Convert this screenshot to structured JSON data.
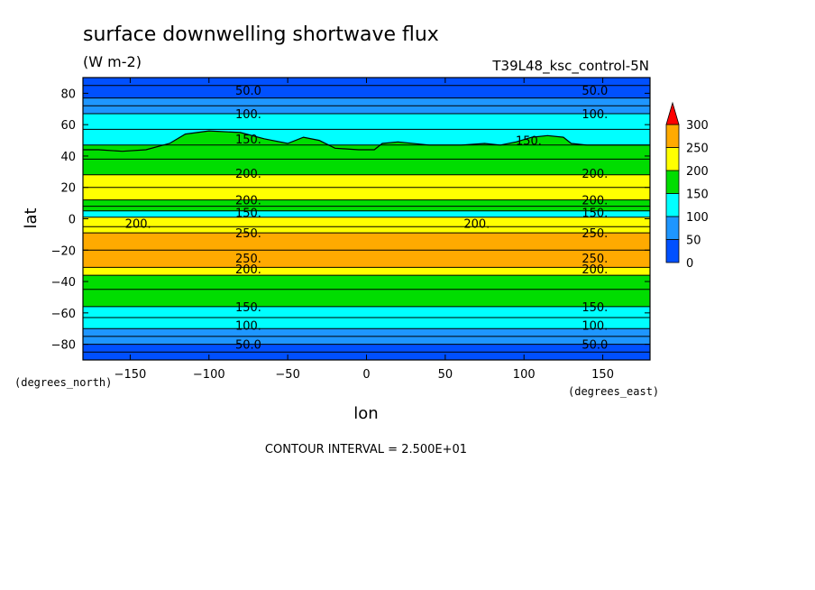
{
  "chart_data": {
    "type": "heatmap",
    "title": "surface downwelling shortwave flux",
    "units": "(W m-2)",
    "run_label": "T39L48_ksc_control-5N",
    "xlabel": "lon",
    "ylabel": "lat",
    "x_units_label": "(degrees_east)",
    "y_units_label": "(degrees_north)",
    "xlim": [
      -180,
      180
    ],
    "ylim": [
      -90,
      90
    ],
    "x_ticks": [
      -150,
      -100,
      -50,
      0,
      50,
      100,
      150
    ],
    "x_tick_labels": [
      "-150",
      "-100",
      "-50",
      "0",
      "50",
      "100",
      "150"
    ],
    "y_ticks": [
      80,
      60,
      40,
      20,
      0,
      -20,
      -40,
      -60,
      -80
    ],
    "y_tick_labels": [
      "80",
      "60",
      "40",
      "20",
      "0",
      "-20",
      "-40",
      "-60",
      "-80"
    ],
    "contour_interval_text": "CONTOUR INTERVAL = 2.500E+01",
    "colorbar": {
      "levels": [
        0,
        50,
        100,
        150,
        200,
        250,
        300
      ],
      "labels": [
        "0",
        "50",
        "100",
        "150",
        "200",
        "250",
        "300"
      ],
      "colors": [
        "#0050ff",
        "#1e96ff",
        "#00ffff",
        "#00dd00",
        "#ffff00",
        "#ffaa00"
      ],
      "overflow_color": "#ff0000"
    },
    "colors": {
      "dark_blue": "#0050ff",
      "mid_blue": "#1e96ff",
      "cyan": "#00ffff",
      "green": "#00dd00",
      "yellow": "#ffff00",
      "orange": "#ffaa00"
    },
    "bands": [
      {
        "lat_from": 90,
        "lat_to": 77,
        "class": "dark_blue"
      },
      {
        "lat_from": 77,
        "lat_to": 67,
        "class": "mid_blue"
      },
      {
        "lat_from": 67,
        "lat_to": 47,
        "class": "cyan"
      },
      {
        "lat_from": 47,
        "lat_to": 28,
        "class": "green"
      },
      {
        "lat_from": 28,
        "lat_to": 12,
        "class": "yellow"
      },
      {
        "lat_from": 12,
        "lat_to": 5,
        "class": "green"
      },
      {
        "lat_from": 5,
        "lat_to": 1,
        "class": "cyan"
      },
      {
        "lat_from": 1,
        "lat_to": -9,
        "class": "yellow"
      },
      {
        "lat_from": -9,
        "lat_to": -31,
        "class": "orange"
      },
      {
        "lat_from": -31,
        "lat_to": -36,
        "class": "yellow"
      },
      {
        "lat_from": -36,
        "lat_to": -56,
        "class": "green"
      },
      {
        "lat_from": -56,
        "lat_to": -70,
        "class": "cyan"
      },
      {
        "lat_from": -70,
        "lat_to": -80,
        "class": "mid_blue"
      },
      {
        "lat_from": -80,
        "lat_to": -90,
        "class": "dark_blue"
      }
    ],
    "green_cyan_boundary_nh": [
      [
        -180,
        44
      ],
      [
        -170,
        44
      ],
      [
        -155,
        43
      ],
      [
        -140,
        44
      ],
      [
        -125,
        48
      ],
      [
        -115,
        54
      ],
      [
        -100,
        56
      ],
      [
        -80,
        55
      ],
      [
        -65,
        51
      ],
      [
        -50,
        48
      ],
      [
        -40,
        52
      ],
      [
        -30,
        50
      ],
      [
        -20,
        45
      ],
      [
        -5,
        44
      ],
      [
        5,
        44
      ],
      [
        10,
        48
      ],
      [
        20,
        49
      ],
      [
        40,
        47
      ],
      [
        60,
        47
      ],
      [
        75,
        48
      ],
      [
        85,
        47
      ],
      [
        95,
        49
      ],
      [
        105,
        52
      ],
      [
        115,
        53
      ],
      [
        125,
        52
      ],
      [
        130,
        48
      ],
      [
        140,
        47
      ],
      [
        155,
        47
      ],
      [
        170,
        47
      ],
      [
        180,
        47
      ]
    ],
    "contour_labels": [
      {
        "text": "50.0",
        "lon": -75,
        "lat": 82
      },
      {
        "text": "50.0",
        "lon": 145,
        "lat": 82
      },
      {
        "text": "100.",
        "lon": -75,
        "lat": 67
      },
      {
        "text": "100.",
        "lon": 145,
        "lat": 67
      },
      {
        "text": "150.",
        "lon": -75,
        "lat": 51
      },
      {
        "text": "150.",
        "lon": 103,
        "lat": 50
      },
      {
        "text": "200.",
        "lon": -75,
        "lat": 29
      },
      {
        "text": "200.",
        "lon": 145,
        "lat": 29
      },
      {
        "text": "200.",
        "lon": -75,
        "lat": 12
      },
      {
        "text": "200.",
        "lon": 145,
        "lat": 12
      },
      {
        "text": "150.",
        "lon": -75,
        "lat": 4
      },
      {
        "text": "150.",
        "lon": 145,
        "lat": 4
      },
      {
        "text": "200.",
        "lon": -145,
        "lat": -3
      },
      {
        "text": "200.",
        "lon": 70,
        "lat": -3
      },
      {
        "text": "250.",
        "lon": -75,
        "lat": -9
      },
      {
        "text": "250.",
        "lon": 145,
        "lat": -9
      },
      {
        "text": "250.",
        "lon": -75,
        "lat": -25
      },
      {
        "text": "250.",
        "lon": 145,
        "lat": -25
      },
      {
        "text": "200.",
        "lon": -75,
        "lat": -32
      },
      {
        "text": "200.",
        "lon": 145,
        "lat": -32
      },
      {
        "text": "150.",
        "lon": -75,
        "lat": -56
      },
      {
        "text": "150.",
        "lon": 145,
        "lat": -56
      },
      {
        "text": "100.",
        "lon": -75,
        "lat": -68
      },
      {
        "text": "100.",
        "lon": 145,
        "lat": -68
      },
      {
        "text": "50.0",
        "lon": -75,
        "lat": -80
      },
      {
        "text": "50.0",
        "lon": 145,
        "lat": -80
      }
    ]
  }
}
